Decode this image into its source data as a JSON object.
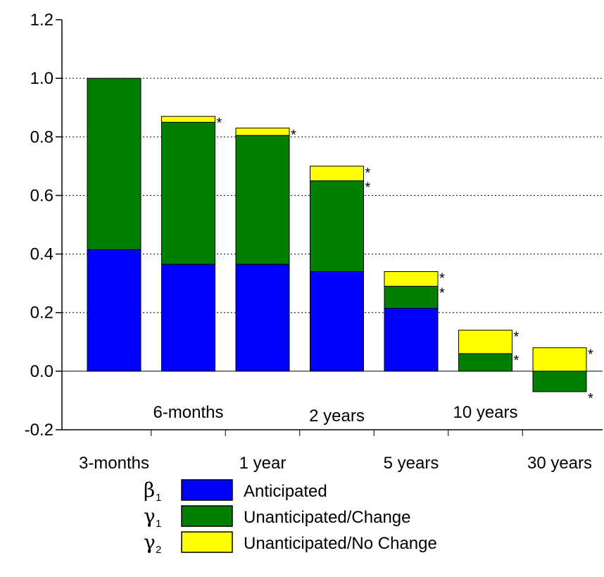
{
  "chart_data": {
    "type": "bar",
    "stacked": true,
    "categories": [
      "3-months",
      "6-months",
      "1 year",
      "2 years",
      "5 years",
      "10 years",
      "30 years"
    ],
    "series": [
      {
        "name": "Anticipated",
        "symbol": "β",
        "subscript": "1",
        "color": "#0000ff",
        "values": [
          0.415,
          0.365,
          0.365,
          0.34,
          0.215,
          0.0,
          0.0
        ],
        "significant": [
          false,
          false,
          false,
          false,
          false,
          false,
          false
        ]
      },
      {
        "name": "Unanticipated/Change",
        "symbol": "γ",
        "subscript": "1",
        "color": "#007f00",
        "values": [
          0.585,
          0.485,
          0.44,
          0.31,
          0.075,
          0.06,
          -0.07
        ],
        "significant": [
          false,
          false,
          false,
          true,
          true,
          true,
          true
        ]
      },
      {
        "name": "Unanticipated/No Change",
        "symbol": "γ",
        "subscript": "2",
        "color": "#ffff00",
        "values": [
          0.0,
          0.02,
          0.025,
          0.05,
          0.05,
          0.08,
          0.08
        ],
        "significant": [
          false,
          true,
          true,
          true,
          true,
          true,
          true
        ]
      }
    ],
    "significance_marker": "*",
    "ylim": [
      -0.2,
      1.2
    ],
    "yticks": [
      "-0.2",
      "0.0",
      "0.2",
      "0.4",
      "0.6",
      "0.8",
      "1.0",
      "1.2"
    ],
    "ytick_values": [
      -0.2,
      0.0,
      0.2,
      0.4,
      0.6,
      0.8,
      1.0,
      1.2
    ],
    "gridlines": [
      0.2,
      0.4,
      0.6,
      0.8,
      1.0
    ],
    "grid": "dotted horizontal",
    "legend_position": "bottom"
  }
}
